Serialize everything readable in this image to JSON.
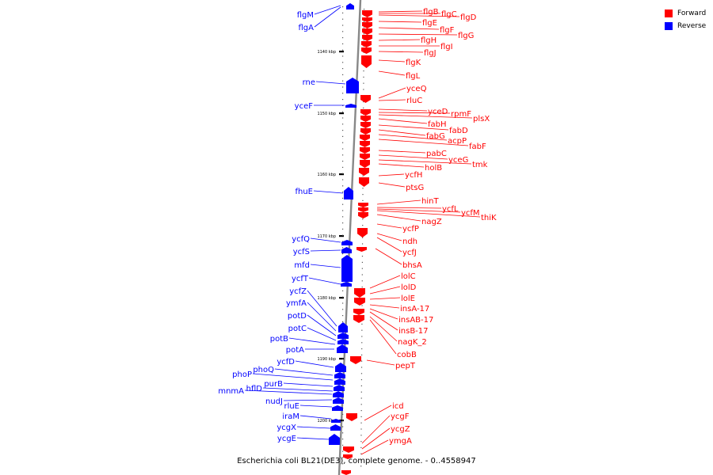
{
  "footer": {
    "text": "Escherichia coli BL21(DE3), complete genome. - 0..4558947"
  },
  "legend": [
    {
      "label": "Forward",
      "color": "#ff0000"
    },
    {
      "label": "Reverse",
      "color": "#0000ff"
    }
  ],
  "colors": {
    "forward": "#ff0000",
    "reverse": "#0000ff",
    "backbone": "#888888"
  },
  "ticks": [
    "1140 kbp",
    "1150 kbp",
    "1160 kbp",
    "1170 kbp",
    "1180 kbp",
    "1190 kbp",
    "1200 kbp"
  ],
  "reverse_genes": [
    "flgM",
    "flgA",
    "rne",
    "yceF",
    "fhuE",
    "ycfQ",
    "ycfS",
    "mfd",
    "ycfT",
    "ycfZ",
    "ymfA",
    "potD",
    "potC",
    "potB",
    "potA",
    "ycfD",
    "phoQ",
    "phoP",
    "purB",
    "hflD",
    "mnmA",
    "nudJ",
    "rluE",
    "iraM",
    "ycgX",
    "ycgE"
  ],
  "forward_genes": [
    "flgB",
    "flgC",
    "flgD",
    "flgE",
    "flgF",
    "flgG",
    "flgH",
    "flgI",
    "flgJ",
    "flgK",
    "flgL",
    "yceQ",
    "rluC",
    "yceD",
    "rpmF",
    "plsX",
    "fabH",
    "fabD",
    "fabG",
    "acpP",
    "fabF",
    "pabC",
    "yceG",
    "tmk",
    "holB",
    "ycfH",
    "ptsG",
    "hinT",
    "ycfL",
    "ycfM",
    "thiK",
    "nagZ",
    "ycfP",
    "ndh",
    "ycfJ",
    "bhsA",
    "lolC",
    "lolD",
    "lolE",
    "insA-17",
    "insAB-17",
    "insB-17",
    "nagK_2",
    "cobB",
    "pepT",
    "icd",
    "ycgF",
    "ycgZ",
    "ymgA"
  ]
}
